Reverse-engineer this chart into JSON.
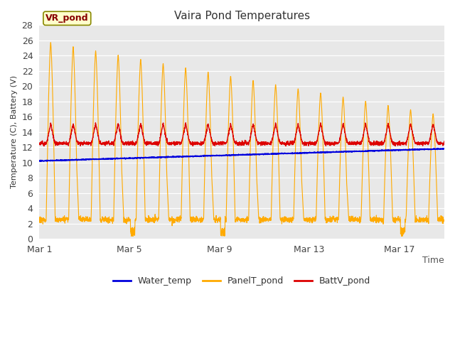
{
  "title": "Vaira Pond Temperatures",
  "xlabel": "Time",
  "ylabel": "Temperature (C), Battery (V)",
  "ylim": [
    0,
    28
  ],
  "yticks": [
    0,
    2,
    4,
    6,
    8,
    10,
    12,
    14,
    16,
    18,
    20,
    22,
    24,
    26,
    28
  ],
  "xtick_labels": [
    "Mar 1",
    "Mar 5",
    "Mar 9",
    "Mar 13",
    "Mar 17"
  ],
  "xtick_positions": [
    0,
    4,
    8,
    12,
    16
  ],
  "n_days": 18,
  "water_temp_start": 10.2,
  "water_temp_end": 11.8,
  "fig_bg_color": "#ffffff",
  "plot_bg_color": "#e8e8e8",
  "water_color": "#0000dd",
  "panel_color": "#ffaa00",
  "batt_color": "#dd0000",
  "legend_labels": [
    "Water_temp",
    "PanelT_pond",
    "BattV_pond"
  ],
  "annotation_text": "VR_pond",
  "annotation_box_color": "#ffffcc",
  "annotation_border_color": "#888800",
  "annotation_text_color": "#880000"
}
